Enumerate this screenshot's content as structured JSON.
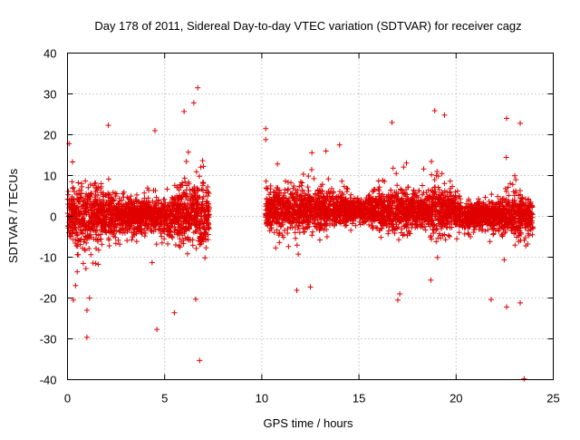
{
  "chart_data": {
    "type": "scatter",
    "title": "Day 178 of 2011, Sidereal Day-to-day VTEC variation (SDTVAR) for receiver cagz",
    "xlabel": "GPS time / hours",
    "ylabel": "SDTVAR / TECUs",
    "xlim": [
      0,
      25
    ],
    "ylim": [
      -40,
      40
    ],
    "x_ticks": [
      0,
      5,
      10,
      15,
      20,
      25
    ],
    "y_ticks": [
      -40,
      -30,
      -20,
      -10,
      0,
      10,
      20,
      30,
      40
    ],
    "x_tick_labels": [
      "0",
      "5",
      "10",
      "15",
      "20",
      "25"
    ],
    "y_tick_labels": [
      "-40",
      "-30",
      "-20",
      "-10",
      "0",
      "10",
      "20",
      "30",
      "40"
    ],
    "grid": true,
    "marker": "+",
    "marker_color": "#e00000",
    "series": [
      {
        "name": "SDTVAR",
        "segments": [
          {
            "x_range": [
              0.0,
              7.3
            ],
            "envelope": [
              [
                0.0,
                8
              ],
              [
                1.0,
                9
              ],
              [
                2.0,
                7
              ],
              [
                3.0,
                4
              ],
              [
                4.0,
                5
              ],
              [
                5.0,
                5
              ],
              [
                6.0,
                8
              ],
              [
                7.0,
                9
              ],
              [
                7.3,
                6
              ]
            ]
          },
          {
            "x_range": [
              10.2,
              23.95
            ],
            "envelope": [
              [
                10.2,
                5
              ],
              [
                11.0,
                6
              ],
              [
                12.0,
                6
              ],
              [
                13.0,
                6
              ],
              [
                14.0,
                4
              ],
              [
                15.0,
                3
              ],
              [
                16.0,
                5
              ],
              [
                17.0,
                6
              ],
              [
                18.0,
                4
              ],
              [
                19.0,
                7
              ],
              [
                20.0,
                5
              ],
              [
                21.0,
                3
              ],
              [
                22.0,
                4
              ],
              [
                23.0,
                6
              ],
              [
                23.95,
                5
              ]
            ]
          }
        ],
        "outliers": [
          {
            "x": 6.7,
            "y": 31.5
          },
          {
            "x": 6.5,
            "y": 27.8
          },
          {
            "x": 6.0,
            "y": 25.7
          },
          {
            "x": 6.8,
            "y": -35.3
          },
          {
            "x": 4.6,
            "y": -27.7
          },
          {
            "x": 1.0,
            "y": -29.6
          },
          {
            "x": 2.1,
            "y": 22.3
          },
          {
            "x": 5.5,
            "y": -23.6
          },
          {
            "x": 4.5,
            "y": 21.0
          },
          {
            "x": 0.3,
            "y": -20.5
          },
          {
            "x": 6.6,
            "y": -20.3
          },
          {
            "x": 1.0,
            "y": -23.0
          },
          {
            "x": 10.2,
            "y": 21.5
          },
          {
            "x": 10.2,
            "y": 18.8
          },
          {
            "x": 16.7,
            "y": 23.0
          },
          {
            "x": 18.9,
            "y": 25.9
          },
          {
            "x": 19.4,
            "y": 24.8
          },
          {
            "x": 22.6,
            "y": 24.0
          },
          {
            "x": 23.3,
            "y": 22.8
          },
          {
            "x": 23.5,
            "y": -39.8
          },
          {
            "x": 22.6,
            "y": -22.2
          },
          {
            "x": 21.8,
            "y": -20.4
          },
          {
            "x": 23.3,
            "y": -21.2
          },
          {
            "x": 11.8,
            "y": -18.1
          },
          {
            "x": 12.5,
            "y": -17.3
          },
          {
            "x": 17.0,
            "y": -20.5
          },
          {
            "x": 17.1,
            "y": -19.0
          },
          {
            "x": 18.7,
            "y": -15.6
          },
          {
            "x": 13.3,
            "y": 16.0
          },
          {
            "x": 14.0,
            "y": 17.5
          }
        ]
      }
    ]
  }
}
